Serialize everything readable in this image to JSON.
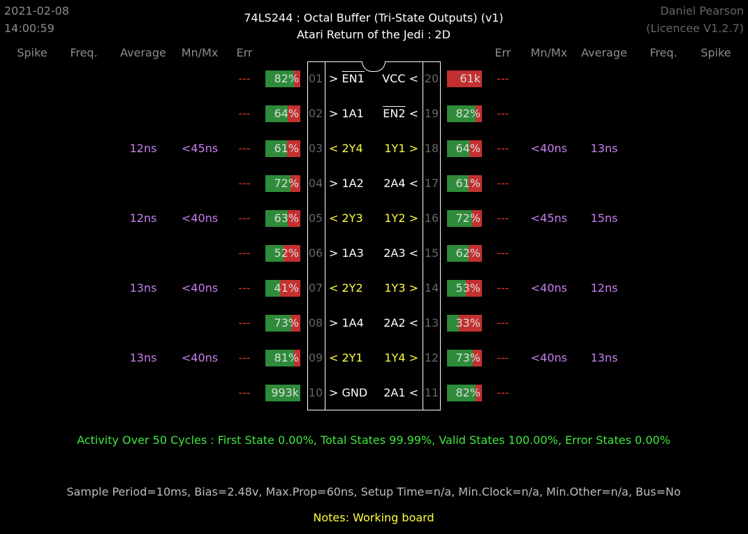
{
  "header": {
    "date": "2021-02-08",
    "time": "14:00:59",
    "title": "74LS244  :  Octal Buffer (Tri-State Outputs) (v1)",
    "subtitle": "Atari Return of the Jedi : 2D",
    "author": "Daniel Pearson",
    "licence": "(Licencee V1.2.7)"
  },
  "columns": {
    "left": [
      "Spike",
      "Freq.",
      "Average",
      "Mn/Mx",
      "Err"
    ],
    "right": [
      "Err",
      "Mn/Mx",
      "Average",
      "Freq.",
      "Spike"
    ]
  },
  "left_pins": [
    {
      "num": "01",
      "prefix": "> ",
      "name": "EN1",
      "overline": true,
      "color": "white",
      "err": "---",
      "bar_pct": 82,
      "bar_label": "82%",
      "mnmx": "",
      "avg": ""
    },
    {
      "num": "02",
      "prefix": "> ",
      "name": "1A1",
      "overline": false,
      "color": "white",
      "err": "---",
      "bar_pct": 64,
      "bar_label": "64%",
      "mnmx": "",
      "avg": ""
    },
    {
      "num": "03",
      "prefix": "< ",
      "name": "2Y4",
      "overline": false,
      "color": "yellow",
      "err": "---",
      "bar_pct": 61,
      "bar_label": "61%",
      "mnmx": "<45ns",
      "avg": "12ns"
    },
    {
      "num": "04",
      "prefix": "> ",
      "name": "1A2",
      "overline": false,
      "color": "white",
      "err": "---",
      "bar_pct": 72,
      "bar_label": "72%",
      "mnmx": "",
      "avg": ""
    },
    {
      "num": "05",
      "prefix": "< ",
      "name": "2Y3",
      "overline": false,
      "color": "yellow",
      "err": "---",
      "bar_pct": 63,
      "bar_label": "63%",
      "mnmx": "<40ns",
      "avg": "12ns"
    },
    {
      "num": "06",
      "prefix": "> ",
      "name": "1A3",
      "overline": false,
      "color": "white",
      "err": "---",
      "bar_pct": 52,
      "bar_label": "52%",
      "mnmx": "",
      "avg": ""
    },
    {
      "num": "07",
      "prefix": "< ",
      "name": "2Y2",
      "overline": false,
      "color": "yellow",
      "err": "---",
      "bar_pct": 41,
      "bar_label": "41%",
      "mnmx": "<40ns",
      "avg": "13ns"
    },
    {
      "num": "08",
      "prefix": "> ",
      "name": "1A4",
      "overline": false,
      "color": "white",
      "err": "---",
      "bar_pct": 73,
      "bar_label": "73%",
      "mnmx": "",
      "avg": ""
    },
    {
      "num": "09",
      "prefix": "< ",
      "name": "2Y1",
      "overline": false,
      "color": "yellow",
      "err": "---",
      "bar_pct": 81,
      "bar_label": "81%",
      "mnmx": "<40ns",
      "avg": "13ns"
    },
    {
      "num": "10",
      "prefix": "> ",
      "name": "GND",
      "overline": false,
      "color": "white",
      "err": "---",
      "bar_pct": 100,
      "bar_label": "993k",
      "mnmx": "",
      "avg": ""
    }
  ],
  "right_pins": [
    {
      "num": "20",
      "name": "VCC",
      "suffix": " <",
      "overline": false,
      "color": "white",
      "err": "---",
      "bar_pct": 0,
      "bar_label": "61k",
      "mnmx": "",
      "avg": ""
    },
    {
      "num": "19",
      "name": "EN2",
      "suffix": " <",
      "overline": true,
      "color": "white",
      "err": "---",
      "bar_pct": 82,
      "bar_label": "82%",
      "mnmx": "",
      "avg": ""
    },
    {
      "num": "18",
      "name": "1Y1",
      "suffix": " >",
      "overline": false,
      "color": "yellow",
      "err": "---",
      "bar_pct": 64,
      "bar_label": "64%",
      "mnmx": "<40ns",
      "avg": "13ns"
    },
    {
      "num": "17",
      "name": "2A4",
      "suffix": " <",
      "overline": false,
      "color": "white",
      "err": "---",
      "bar_pct": 61,
      "bar_label": "61%",
      "mnmx": "",
      "avg": ""
    },
    {
      "num": "16",
      "name": "1Y2",
      "suffix": " >",
      "overline": false,
      "color": "yellow",
      "err": "---",
      "bar_pct": 72,
      "bar_label": "72%",
      "mnmx": "<45ns",
      "avg": "15ns"
    },
    {
      "num": "15",
      "name": "2A3",
      "suffix": " <",
      "overline": false,
      "color": "white",
      "err": "---",
      "bar_pct": 62,
      "bar_label": "62%",
      "mnmx": "",
      "avg": ""
    },
    {
      "num": "14",
      "name": "1Y3",
      "suffix": " >",
      "overline": false,
      "color": "yellow",
      "err": "---",
      "bar_pct": 53,
      "bar_label": "53%",
      "mnmx": "<40ns",
      "avg": "12ns"
    },
    {
      "num": "13",
      "name": "2A2",
      "suffix": " <",
      "overline": false,
      "color": "white",
      "err": "---",
      "bar_pct": 33,
      "bar_label": "33%",
      "mnmx": "",
      "avg": ""
    },
    {
      "num": "12",
      "name": "1Y4",
      "suffix": " >",
      "overline": false,
      "color": "yellow",
      "err": "---",
      "bar_pct": 73,
      "bar_label": "73%",
      "mnmx": "<40ns",
      "avg": "13ns"
    },
    {
      "num": "11",
      "name": "2A1",
      "suffix": " <",
      "overline": false,
      "color": "white",
      "err": "---",
      "bar_pct": 82,
      "bar_label": "82%",
      "mnmx": "",
      "avg": ""
    }
  ],
  "activity": "Activity Over 50 Cycles  :  First State 0.00%,  Total States 99.99%,  Valid States 100.00%,  Error States 0.00%",
  "settings": "Sample Period=10ms,  Bias=2.48v,  Max.Prop=60ns,  Setup Time=n/a,  Min.Clock=n/a,  Min.Other=n/a,  Bus=No",
  "notes": "Notes:  Working board",
  "colors": {
    "bar_green": "#2e8b3a",
    "bar_red": "#c43030",
    "label_yellow": "#ffff3c",
    "timing_purple": "#c87ff0",
    "err_red": "#e23a2a",
    "activity_green": "#3ee83e"
  }
}
